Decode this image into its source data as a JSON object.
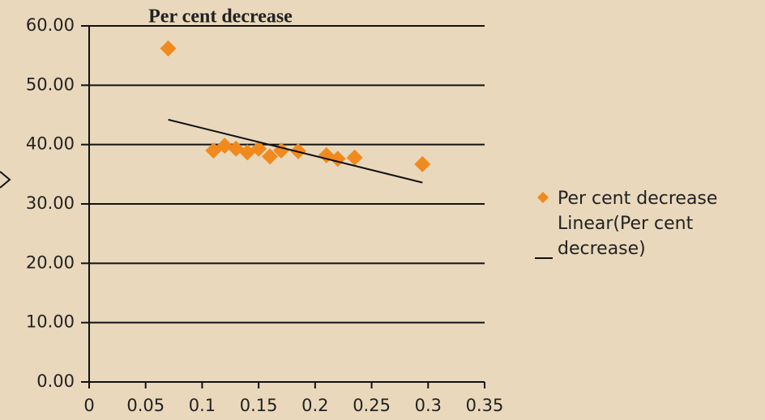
{
  "chart_data": {
    "type": "scatter",
    "title": "Per cent decrease",
    "series": [
      {
        "name": "Per cent decrease",
        "color": "#f08a1e",
        "x": [
          0.07,
          0.11,
          0.12,
          0.13,
          0.14,
          0.15,
          0.16,
          0.17,
          0.185,
          0.21,
          0.22,
          0.235,
          0.295
        ],
        "values": [
          56.2,
          39.0,
          39.8,
          39.3,
          38.7,
          39.3,
          38.0,
          39.0,
          38.9,
          38.2,
          37.6,
          37.8,
          36.7
        ]
      }
    ],
    "trendline": {
      "name": "Linear(Per cent decrease)",
      "color": "#111111",
      "x": [
        0.07,
        0.295
      ],
      "values": [
        44.2,
        33.6
      ]
    },
    "xlim": [
      0,
      0.35
    ],
    "xticks": [
      0,
      0.05,
      0.1,
      0.15,
      0.2,
      0.25,
      0.3,
      0.35
    ],
    "ylim": [
      0,
      60
    ],
    "yticks": [
      {
        "value": 0,
        "label": "0.00"
      },
      {
        "value": 10,
        "label": "10.00"
      },
      {
        "value": 20,
        "label": "20.00"
      },
      {
        "value": 30,
        "label": "30.00"
      },
      {
        "value": 40,
        "label": "40.00"
      },
      {
        "value": 50,
        "label": "50.00"
      },
      {
        "value": 60,
        "label": "60.00"
      }
    ],
    "grid": true
  }
}
